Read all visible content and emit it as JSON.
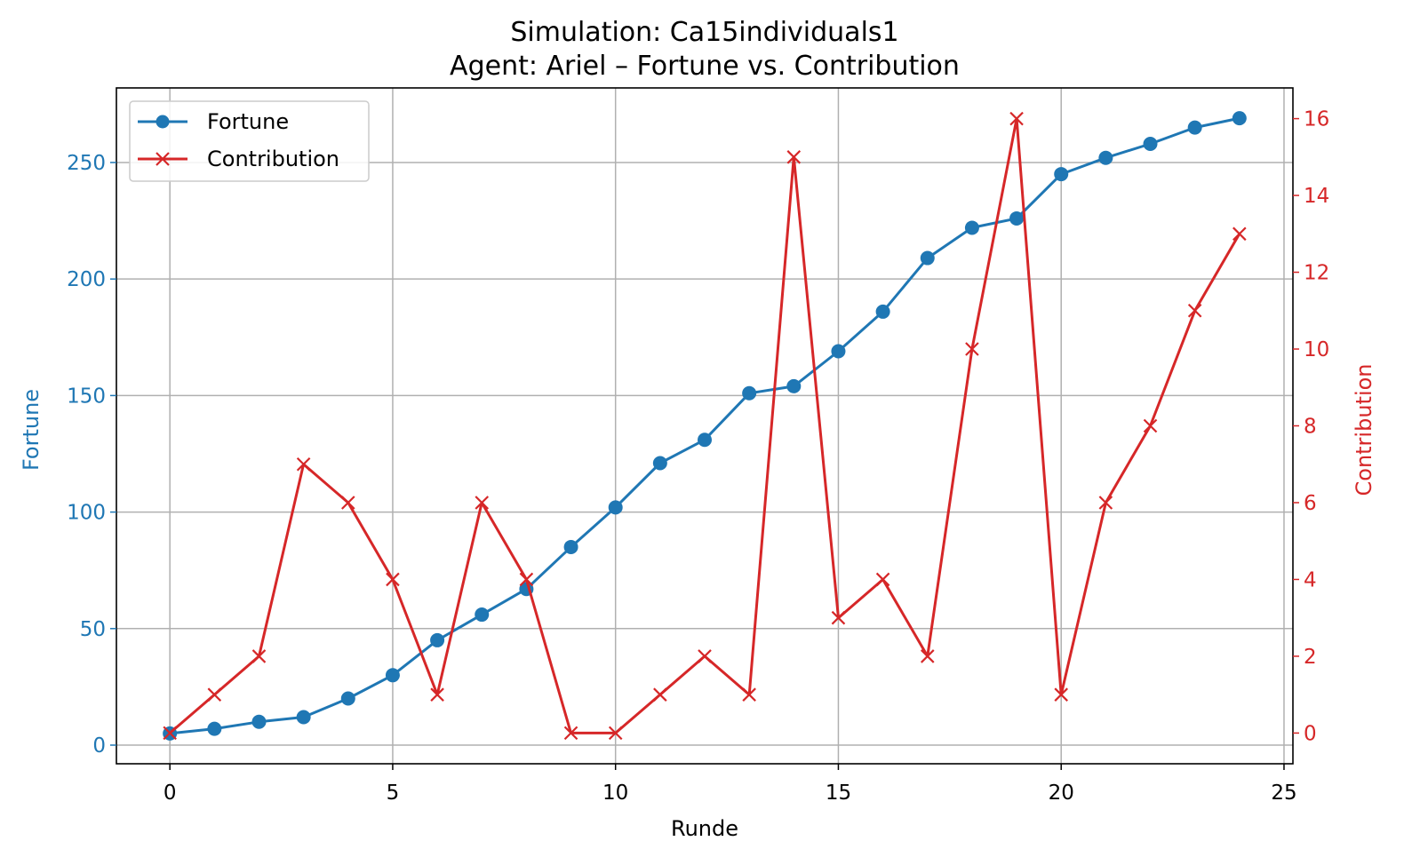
{
  "chart_data": {
    "type": "line",
    "title": "Simulation: Ca15individuals1",
    "subtitle": "Agent: Ariel – Fortune vs. Contribution",
    "xlabel": "Runde",
    "ylabel_left": "Fortune",
    "ylabel_right": "Contribution",
    "x": [
      0,
      1,
      2,
      3,
      4,
      5,
      6,
      7,
      8,
      9,
      10,
      11,
      12,
      13,
      14,
      15,
      16,
      17,
      18,
      19,
      20,
      21,
      22,
      23,
      24
    ],
    "xlim": [
      -1.2,
      25.2
    ],
    "xticks": [
      0,
      5,
      10,
      15,
      20,
      25
    ],
    "ylim_left": [
      -8,
      282
    ],
    "yticks_left": [
      0,
      50,
      100,
      150,
      200,
      250
    ],
    "ylim_right": [
      -0.8,
      16.8
    ],
    "yticks_right": [
      0,
      2,
      4,
      6,
      8,
      10,
      12,
      14,
      16
    ],
    "grid": true,
    "legend_position": "top-left",
    "series": [
      {
        "name": "Fortune",
        "axis": "left",
        "color": "#1f77b4",
        "marker": "circle",
        "values": [
          5,
          7,
          10,
          12,
          20,
          30,
          45,
          56,
          67,
          85,
          102,
          121,
          131,
          151,
          154,
          169,
          186,
          209,
          222,
          226,
          245,
          252,
          258,
          265,
          269
        ]
      },
      {
        "name": "Contribution",
        "axis": "right",
        "color": "#d62728",
        "marker": "x",
        "values": [
          0,
          1,
          2,
          7,
          6,
          4,
          1,
          6,
          4,
          0,
          0,
          1,
          2,
          1,
          15,
          3,
          4,
          2,
          10,
          16,
          1,
          6,
          8,
          11,
          13
        ]
      }
    ]
  }
}
